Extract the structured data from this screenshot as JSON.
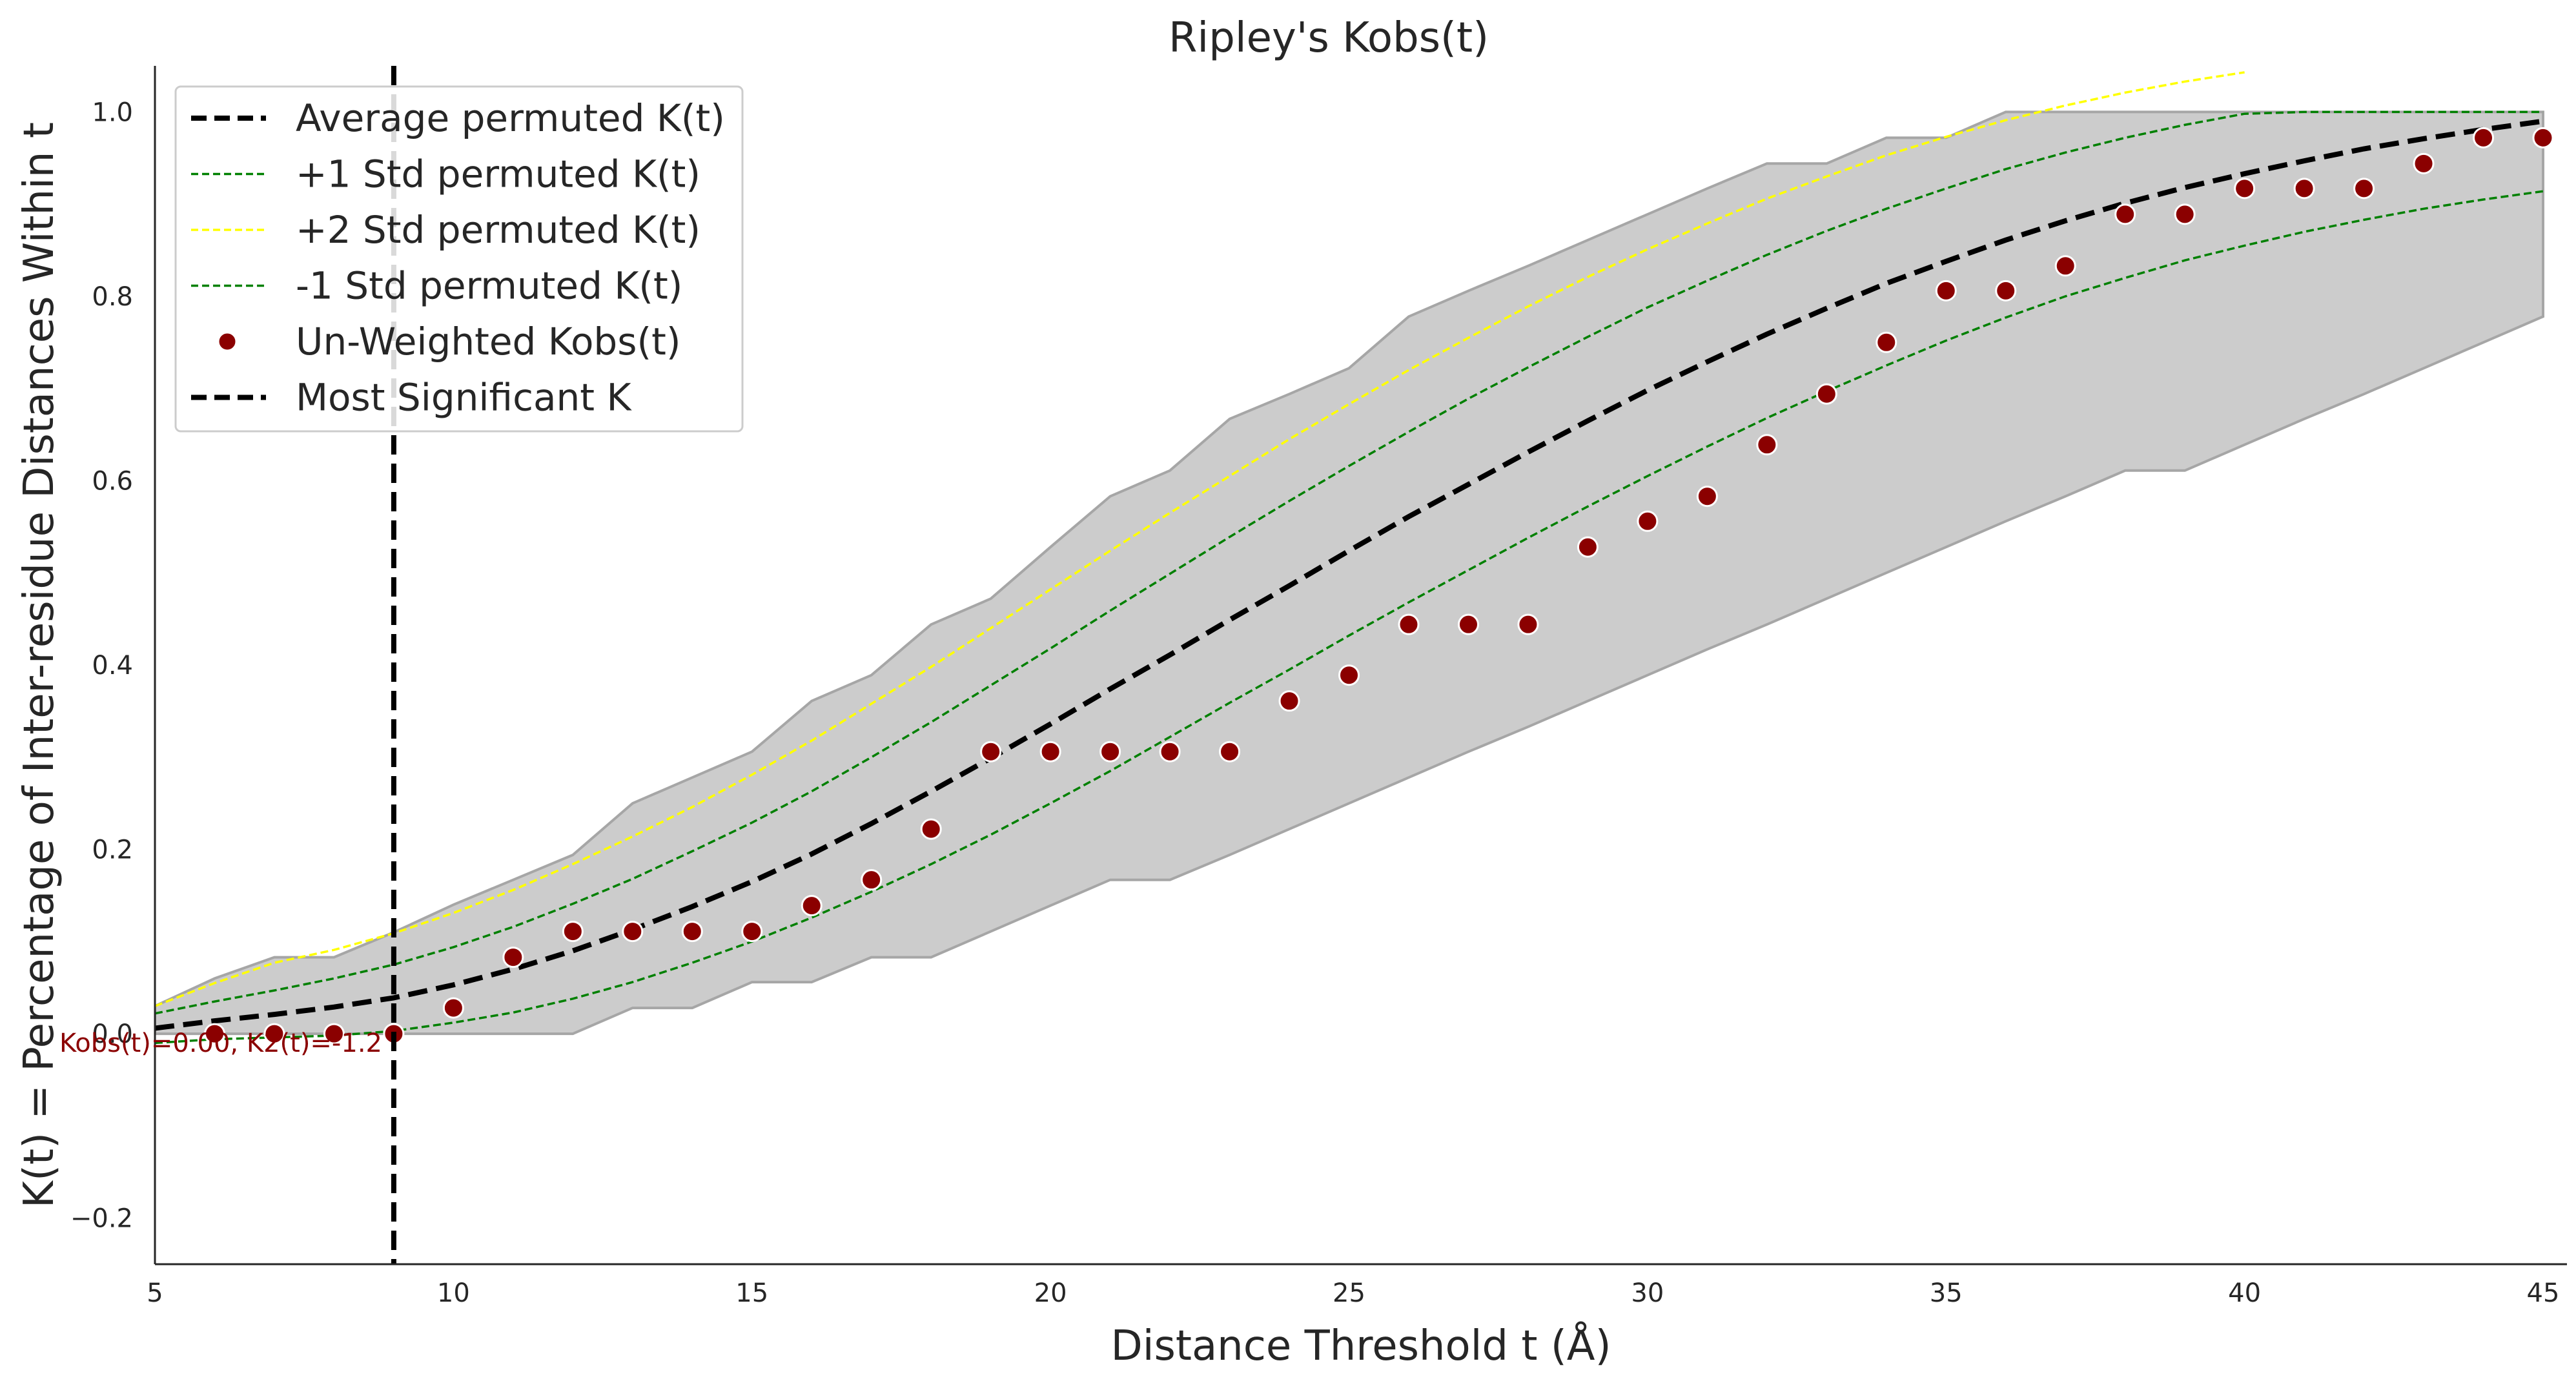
{
  "chart_data": {
    "type": "scatter",
    "title": "Ripley's Kobs(t)",
    "xlabel": "Distance Threshold t (Å)",
    "ylabel": "K(t) = Percentage of Inter-residue Distances Within t",
    "xlim": [
      5,
      45.4
    ],
    "ylim": [
      -0.25,
      1.05
    ],
    "xticks": [
      5,
      10,
      15,
      20,
      25,
      30,
      35,
      40,
      45
    ],
    "yticks": [
      -0.2,
      0.0,
      0.2,
      0.4,
      0.6,
      0.8,
      1.0
    ],
    "ytick_labels": [
      "−0.2",
      "0.0",
      "0.2",
      "0.4",
      "0.6",
      "0.8",
      "1.0"
    ],
    "grid": false,
    "legend_position": "top-left",
    "band": {
      "x": [
        5,
        6,
        7,
        8,
        9,
        10,
        11,
        12,
        13,
        14,
        15,
        16,
        17,
        18,
        19,
        20,
        21,
        22,
        23,
        24,
        25,
        26,
        27,
        28,
        29,
        30,
        31,
        32,
        33,
        34,
        35,
        36,
        37,
        38,
        39,
        40,
        41,
        42,
        43,
        44,
        45
      ],
      "upper": [
        0.03,
        0.06,
        0.083,
        0.083,
        0.11,
        0.14,
        0.167,
        0.194,
        0.25,
        0.278,
        0.306,
        0.361,
        0.389,
        0.444,
        0.472,
        0.528,
        0.583,
        0.611,
        0.667,
        0.694,
        0.722,
        0.778,
        0.806,
        0.833,
        0.861,
        0.889,
        0.917,
        0.944,
        0.944,
        0.972,
        0.972,
        1.0,
        1.0,
        1.0,
        1.0,
        1.0,
        1.0,
        1.0,
        1.0,
        1.0,
        1.0
      ],
      "lower": [
        0.0,
        0.0,
        0.0,
        0.0,
        0.0,
        0.0,
        0.0,
        0.0,
        0.028,
        0.028,
        0.056,
        0.056,
        0.083,
        0.083,
        0.111,
        0.139,
        0.167,
        0.167,
        0.194,
        0.222,
        0.25,
        0.278,
        0.306,
        0.333,
        0.361,
        0.389,
        0.417,
        0.444,
        0.472,
        0.5,
        0.528,
        0.556,
        0.583,
        0.611,
        0.611,
        0.639,
        0.667,
        0.694,
        0.722,
        0.75,
        0.778
      ]
    },
    "series": [
      {
        "name": "Average permuted K(t)",
        "style": "thick-dashed",
        "color": "#000000",
        "x": [
          5,
          6,
          7,
          8,
          9,
          10,
          11,
          12,
          13,
          14,
          15,
          16,
          17,
          18,
          19,
          20,
          21,
          22,
          23,
          24,
          25,
          26,
          27,
          28,
          29,
          30,
          31,
          32,
          33,
          34,
          35,
          36,
          37,
          38,
          39,
          40,
          41,
          42,
          43,
          44,
          45
        ],
        "y": [
          0.006,
          0.014,
          0.021,
          0.029,
          0.039,
          0.053,
          0.07,
          0.09,
          0.113,
          0.138,
          0.165,
          0.195,
          0.228,
          0.263,
          0.299,
          0.336,
          0.374,
          0.411,
          0.449,
          0.486,
          0.524,
          0.561,
          0.596,
          0.631,
          0.665,
          0.698,
          0.729,
          0.759,
          0.787,
          0.814,
          0.838,
          0.861,
          0.882,
          0.901,
          0.918,
          0.933,
          0.947,
          0.96,
          0.971,
          0.981,
          0.99
        ]
      },
      {
        "name": "+1 Std permuted K(t)",
        "style": "thin-dashed",
        "color": "#008000",
        "x": [
          5,
          6,
          7,
          8,
          9,
          10,
          11,
          12,
          13,
          14,
          15,
          16,
          17,
          18,
          19,
          20,
          21,
          22,
          23,
          24,
          25,
          26,
          27,
          28,
          29,
          30,
          31,
          32,
          33,
          34,
          35,
          36,
          37,
          38,
          39,
          40,
          41,
          42,
          43,
          44,
          45
        ],
        "y": [
          0.022,
          0.035,
          0.047,
          0.06,
          0.075,
          0.094,
          0.116,
          0.141,
          0.168,
          0.198,
          0.229,
          0.263,
          0.3,
          0.338,
          0.378,
          0.418,
          0.459,
          0.499,
          0.539,
          0.578,
          0.616,
          0.653,
          0.689,
          0.723,
          0.756,
          0.788,
          0.817,
          0.845,
          0.871,
          0.895,
          0.917,
          0.938,
          0.956,
          0.972,
          0.986,
          0.998,
          1.0,
          1.0,
          1.0,
          1.0,
          1.0
        ]
      },
      {
        "name": "+2 Std permuted K(t)",
        "style": "thin-dashed",
        "color": "#ffff00",
        "x": [
          5,
          6,
          7,
          8,
          9,
          10,
          11,
          12,
          13,
          14,
          15,
          16,
          17,
          18,
          19,
          20,
          21,
          22,
          23,
          24,
          25,
          26,
          27,
          28,
          29,
          30,
          31,
          32,
          33,
          34,
          35,
          36,
          37,
          38,
          39,
          40
        ],
        "y": [
          0.03,
          0.055,
          0.077,
          0.091,
          0.109,
          0.131,
          0.156,
          0.184,
          0.214,
          0.246,
          0.281,
          0.318,
          0.358,
          0.398,
          0.44,
          0.482,
          0.524,
          0.565,
          0.605,
          0.645,
          0.683,
          0.72,
          0.755,
          0.789,
          0.821,
          0.851,
          0.879,
          0.906,
          0.93,
          0.953,
          0.973,
          0.991,
          1.007,
          1.021,
          1.033,
          1.043
        ]
      },
      {
        "name": "-1 Std permuted K(t)",
        "style": "thin-dashed",
        "color": "#008000",
        "x": [
          5,
          6,
          7,
          8,
          9,
          10,
          11,
          12,
          13,
          14,
          15,
          16,
          17,
          18,
          19,
          20,
          21,
          22,
          23,
          24,
          25,
          26,
          27,
          28,
          29,
          30,
          31,
          32,
          33,
          34,
          35,
          36,
          37,
          38,
          39,
          40,
          41,
          42,
          43,
          44,
          45
        ],
        "y": [
          -0.01,
          -0.006,
          -0.004,
          -0.002,
          0.003,
          0.012,
          0.023,
          0.038,
          0.056,
          0.077,
          0.1,
          0.126,
          0.154,
          0.184,
          0.216,
          0.25,
          0.285,
          0.322,
          0.359,
          0.395,
          0.432,
          0.468,
          0.503,
          0.538,
          0.572,
          0.605,
          0.637,
          0.668,
          0.697,
          0.725,
          0.752,
          0.777,
          0.8,
          0.82,
          0.839,
          0.855,
          0.87,
          0.883,
          0.895,
          0.905,
          0.914
        ]
      }
    ],
    "scatter": {
      "name": "Un-Weighted Kobs(t)",
      "color": "#8b0000",
      "x": [
        6,
        7,
        8,
        9,
        10,
        11,
        12,
        13,
        14,
        15,
        16,
        17,
        18,
        19,
        20,
        21,
        22,
        23,
        24,
        25,
        26,
        27,
        28,
        29,
        30,
        31,
        32,
        33,
        34,
        35,
        36,
        37,
        38,
        39,
        40,
        41,
        42,
        43,
        44,
        45
      ],
      "y": [
        0.0,
        0.0,
        0.0,
        0.0,
        0.028,
        0.083,
        0.111,
        0.111,
        0.111,
        0.111,
        0.139,
        0.167,
        0.222,
        0.306,
        0.306,
        0.306,
        0.306,
        0.306,
        0.361,
        0.389,
        0.444,
        0.444,
        0.444,
        0.528,
        0.556,
        0.583,
        0.639,
        0.694,
        0.75,
        0.806,
        0.806,
        0.833,
        0.889,
        0.889,
        0.917,
        0.917,
        0.917,
        0.944,
        0.972,
        0.972
      ]
    },
    "vline": {
      "name": "Most Significant K",
      "x": 9,
      "color": "#000000",
      "style": "thick-dashed"
    },
    "annotation": {
      "text": "Kobs(t)=0.00, K2(t)=-1.2",
      "x": 9,
      "y": 0.0,
      "color": "#8b0000"
    }
  }
}
